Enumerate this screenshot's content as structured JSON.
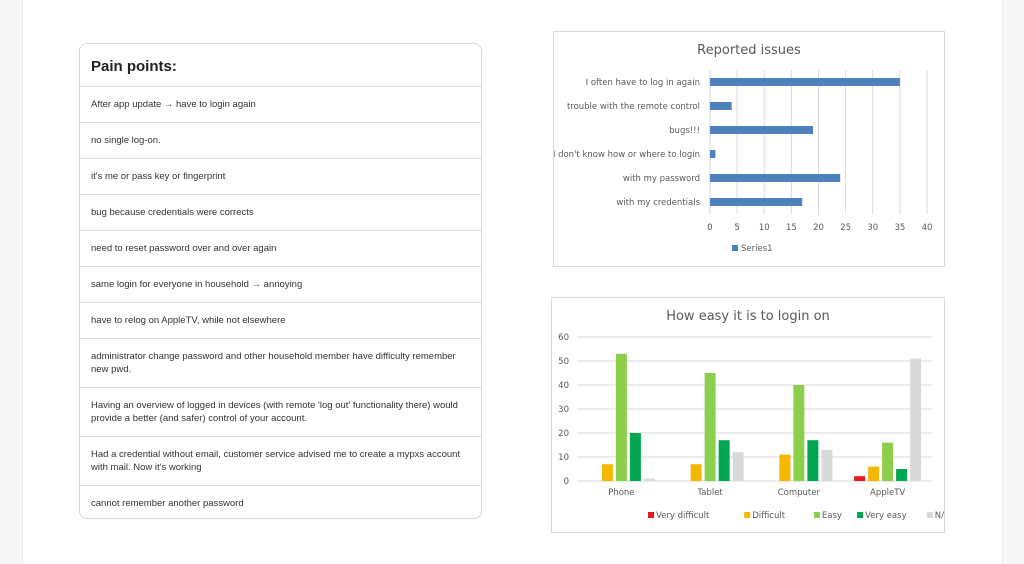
{
  "pain_points": {
    "title": "Pain points:",
    "items": [
      "After app update → have to login again",
      "no single log-on.",
      "it's me or pass key or fingerprint",
      "bug because credentials were corrects",
      "need to reset password over and over again",
      "same login for everyone in household → annoying",
      "have to relog on AppleTV, while not elsewhere",
      "administrator change password and other household member have difficulty remember new pwd.",
      "Having an overview of logged in devices (with remote 'log out' functionality there) would provide a better (and safer) control of your account.",
      "Had a credential without email, customer service advised me to create a mypxs account with mail. Now it's working",
      "cannot remember another password"
    ]
  },
  "chart_data": [
    {
      "type": "bar",
      "orientation": "horizontal",
      "title": "Reported issues",
      "categories": [
        "I often have to log in again",
        "trouble with the remote control",
        "bugs!!!",
        "I don't know how or where to login",
        "with my password",
        "with my credentials"
      ],
      "series": [
        {
          "name": "Series1",
          "values": [
            35,
            4,
            19,
            1,
            24,
            17
          ],
          "color": "#4f81bd"
        }
      ],
      "xlim": [
        0,
        40
      ],
      "xticks": [
        0,
        5,
        10,
        15,
        20,
        25,
        30,
        35,
        40
      ],
      "grid": "vertical",
      "legend": "bottom"
    },
    {
      "type": "bar",
      "title": "How easy it is to login on",
      "categories": [
        "Phone",
        "Tablet",
        "Computer",
        "AppleTV"
      ],
      "series": [
        {
          "name": "Very difficult",
          "values": [
            0,
            0,
            0,
            2
          ],
          "color": "#e41a1c"
        },
        {
          "name": "Difficult",
          "values": [
            7,
            7,
            11,
            6
          ],
          "color": "#f5b800"
        },
        {
          "name": "Easy",
          "values": [
            53,
            45,
            40,
            16
          ],
          "color": "#8ccf4d"
        },
        {
          "name": "Very easy",
          "values": [
            20,
            17,
            17,
            5
          ],
          "color": "#00a651"
        },
        {
          "name": "N/A",
          "values": [
            1,
            12,
            13,
            51
          ],
          "color": "#d9d9d9"
        }
      ],
      "ylim": [
        0,
        60
      ],
      "yticks": [
        0,
        10,
        20,
        30,
        40,
        50,
        60
      ],
      "grid": "horizontal",
      "legend": "bottom"
    }
  ]
}
